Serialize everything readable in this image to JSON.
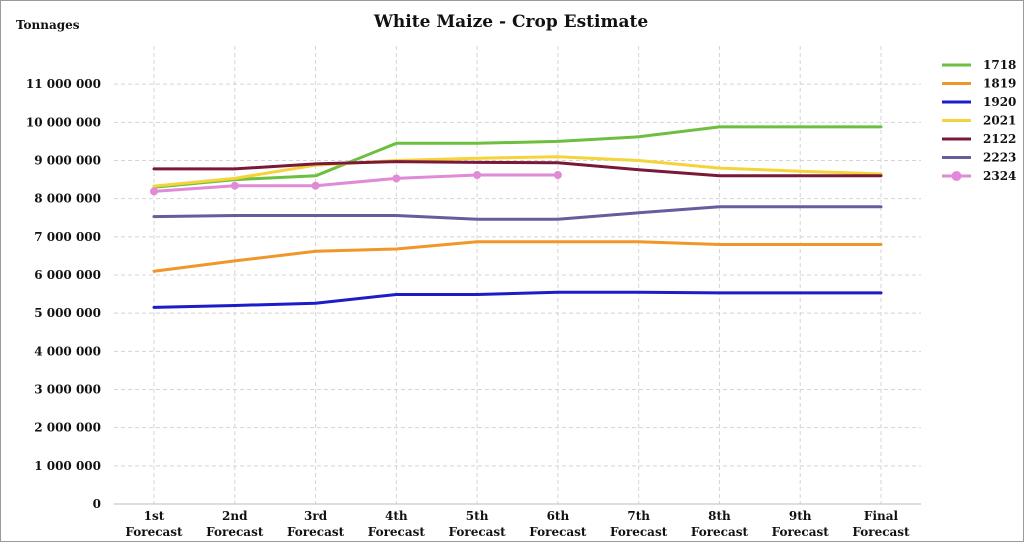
{
  "chart_data": {
    "type": "line",
    "title": "White Maize - Crop Estimate",
    "ylabel": "Tonnages",
    "xlabel": "",
    "categories": [
      "1st Forecast",
      "2nd Forecast",
      "3rd Forecast",
      "4th Forecast",
      "5th Forecast",
      "6th Forecast",
      "7th Forecast",
      "8th Forecast",
      "9th Forecast",
      "Final Forecast"
    ],
    "ylim": [
      0,
      12000000
    ],
    "yticks": [
      0,
      1000000,
      2000000,
      3000000,
      4000000,
      5000000,
      6000000,
      7000000,
      8000000,
      9000000,
      10000000,
      11000000
    ],
    "ytick_labels": [
      "0",
      "1 000 000",
      "2 000 000",
      "3 000 000",
      "4 000 000",
      "5 000 000",
      "6 000 000",
      "7 000 000",
      "8 000 000",
      "9 000 000",
      "10 000 000",
      "11 000 000"
    ],
    "grid": true,
    "legend_position": "right",
    "series": [
      {
        "name": "1718",
        "color": "#6cbf3f",
        "markers": false,
        "values": [
          8300000,
          8500000,
          8600000,
          9450000,
          9450000,
          9500000,
          9620000,
          9880000,
          9880000,
          9880000
        ]
      },
      {
        "name": "1819",
        "color": "#f0962a",
        "markers": false,
        "values": [
          6100000,
          6370000,
          6620000,
          6680000,
          6870000,
          6870000,
          6870000,
          6800000,
          6800000,
          6800000
        ]
      },
      {
        "name": "1920",
        "color": "#1c1cc8",
        "markers": false,
        "values": [
          5150000,
          5200000,
          5260000,
          5490000,
          5490000,
          5550000,
          5550000,
          5530000,
          5530000,
          5530000
        ]
      },
      {
        "name": "2021",
        "color": "#f5d33a",
        "markers": false,
        "values": [
          8330000,
          8530000,
          8880000,
          9000000,
          9060000,
          9100000,
          9000000,
          8800000,
          8720000,
          8650000
        ]
      },
      {
        "name": "2122",
        "color": "#7a1838",
        "markers": false,
        "values": [
          8780000,
          8780000,
          8910000,
          8970000,
          8950000,
          8940000,
          8760000,
          8600000,
          8600000,
          8600000
        ]
      },
      {
        "name": "2223",
        "color": "#6a5a9e",
        "markers": false,
        "values": [
          7530000,
          7560000,
          7560000,
          7560000,
          7460000,
          7460000,
          7630000,
          7790000,
          7790000,
          7790000
        ]
      },
      {
        "name": "2324",
        "color": "#e18ad6",
        "markers": true,
        "values": [
          8190000,
          8340000,
          8340000,
          8530000,
          8620000,
          8620000,
          null,
          null,
          null,
          null
        ]
      }
    ]
  }
}
